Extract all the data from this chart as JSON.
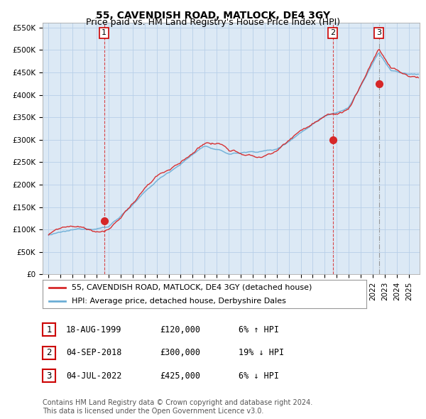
{
  "title": "55, CAVENDISH ROAD, MATLOCK, DE4 3GY",
  "subtitle": "Price paid vs. HM Land Registry's House Price Index (HPI)",
  "ylim": [
    0,
    560000
  ],
  "yticks": [
    0,
    50000,
    100000,
    150000,
    200000,
    250000,
    300000,
    350000,
    400000,
    450000,
    500000,
    550000
  ],
  "ytick_labels": [
    "£0",
    "£50K",
    "£100K",
    "£150K",
    "£200K",
    "£250K",
    "£300K",
    "£350K",
    "£400K",
    "£450K",
    "£500K",
    "£550K"
  ],
  "hpi_color": "#6baed6",
  "price_color": "#d62728",
  "background_color": "#ffffff",
  "chart_bg_color": "#dce9f5",
  "grid_color": "#b8cfe8",
  "legend_label_price": "55, CAVENDISH ROAD, MATLOCK, DE4 3GY (detached house)",
  "legend_label_hpi": "HPI: Average price, detached house, Derbyshire Dales",
  "transactions": [
    {
      "num": 1,
      "date": 1999.63,
      "price": 120000,
      "vline_color": "#d62728",
      "vline_style": "--",
      "date_str": "18-AUG-1999",
      "price_str": "£120,000",
      "hpi_str": "6% ↑ HPI"
    },
    {
      "num": 2,
      "date": 2018.67,
      "price": 300000,
      "vline_color": "#d62728",
      "vline_style": "--",
      "date_str": "04-SEP-2018",
      "price_str": "£300,000",
      "hpi_str": "19% ↓ HPI"
    },
    {
      "num": 3,
      "date": 2022.5,
      "price": 425000,
      "vline_color": "#888888",
      "vline_style": "-.",
      "date_str": "04-JUL-2022",
      "price_str": "£425,000",
      "hpi_str": "6% ↓ HPI"
    }
  ],
  "footer": "Contains HM Land Registry data © Crown copyright and database right 2024.\nThis data is licensed under the Open Government Licence v3.0.",
  "title_fontsize": 10,
  "subtitle_fontsize": 9,
  "tick_fontsize": 7.5,
  "legend_fontsize": 8,
  "footer_fontsize": 7,
  "table_fontsize": 8.5
}
